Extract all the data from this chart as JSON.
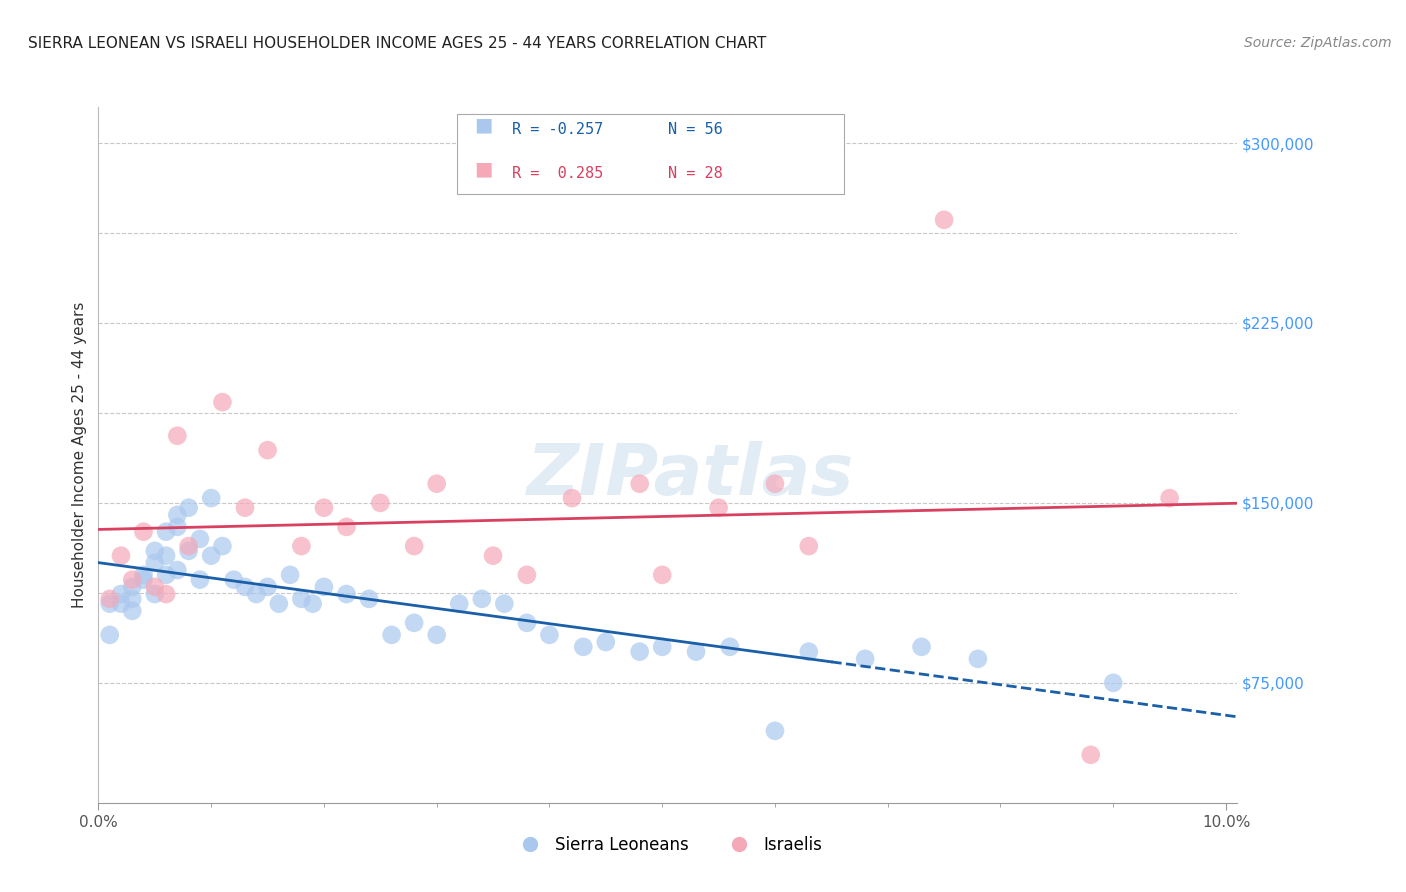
{
  "title": "SIERRA LEONEAN VS ISRAELI HOUSEHOLDER INCOME AGES 25 - 44 YEARS CORRELATION CHART",
  "source": "Source: ZipAtlas.com",
  "ylabel": "Householder Income Ages 25 - 44 years",
  "ytick_labels": [
    "$75,000",
    "$150,000",
    "$225,000",
    "$300,000"
  ],
  "ytick_values": [
    75000,
    150000,
    225000,
    300000
  ],
  "ymin": 25000,
  "ymax": 315000,
  "xmin": 0.0,
  "xmax": 0.101,
  "legend_label1": "R = -0.257   N = 56",
  "legend_label2": "R =  0.285   N = 28",
  "legend_color1": "#aac8ee",
  "legend_color2": "#f4a8b8",
  "watermark": "ZIPatlas",
  "sierra_x": [
    0.001,
    0.001,
    0.002,
    0.002,
    0.003,
    0.003,
    0.003,
    0.004,
    0.004,
    0.005,
    0.005,
    0.005,
    0.006,
    0.006,
    0.006,
    0.007,
    0.007,
    0.007,
    0.008,
    0.008,
    0.009,
    0.009,
    0.01,
    0.01,
    0.011,
    0.012,
    0.013,
    0.014,
    0.015,
    0.016,
    0.017,
    0.018,
    0.019,
    0.02,
    0.022,
    0.024,
    0.026,
    0.028,
    0.03,
    0.032,
    0.034,
    0.036,
    0.038,
    0.04,
    0.043,
    0.045,
    0.048,
    0.05,
    0.053,
    0.056,
    0.06,
    0.063,
    0.068,
    0.073,
    0.078,
    0.09
  ],
  "sierra_y": [
    108000,
    95000,
    112000,
    108000,
    115000,
    110000,
    105000,
    120000,
    118000,
    130000,
    125000,
    112000,
    138000,
    128000,
    120000,
    145000,
    140000,
    122000,
    148000,
    130000,
    135000,
    118000,
    152000,
    128000,
    132000,
    118000,
    115000,
    112000,
    115000,
    108000,
    120000,
    110000,
    108000,
    115000,
    112000,
    110000,
    95000,
    100000,
    95000,
    108000,
    110000,
    108000,
    100000,
    95000,
    90000,
    92000,
    88000,
    90000,
    88000,
    90000,
    55000,
    88000,
    85000,
    90000,
    85000,
    75000
  ],
  "israeli_x": [
    0.001,
    0.002,
    0.003,
    0.004,
    0.005,
    0.006,
    0.007,
    0.008,
    0.011,
    0.013,
    0.015,
    0.018,
    0.02,
    0.022,
    0.025,
    0.028,
    0.03,
    0.035,
    0.038,
    0.042,
    0.048,
    0.05,
    0.055,
    0.06,
    0.063,
    0.075,
    0.088,
    0.095
  ],
  "israeli_y": [
    110000,
    128000,
    118000,
    138000,
    115000,
    112000,
    178000,
    132000,
    192000,
    148000,
    172000,
    132000,
    148000,
    140000,
    150000,
    132000,
    158000,
    128000,
    120000,
    152000,
    158000,
    120000,
    148000,
    158000,
    132000,
    268000,
    45000,
    152000
  ],
  "blue_line_color": "#1a5fa8",
  "pink_line_color": "#d94060",
  "blue_line_dash_start": 0.065,
  "background_color": "#ffffff",
  "grid_color": "#c8c8c8",
  "grid_values": [
    75000,
    112500,
    150000,
    187500,
    225000,
    262500,
    300000
  ]
}
